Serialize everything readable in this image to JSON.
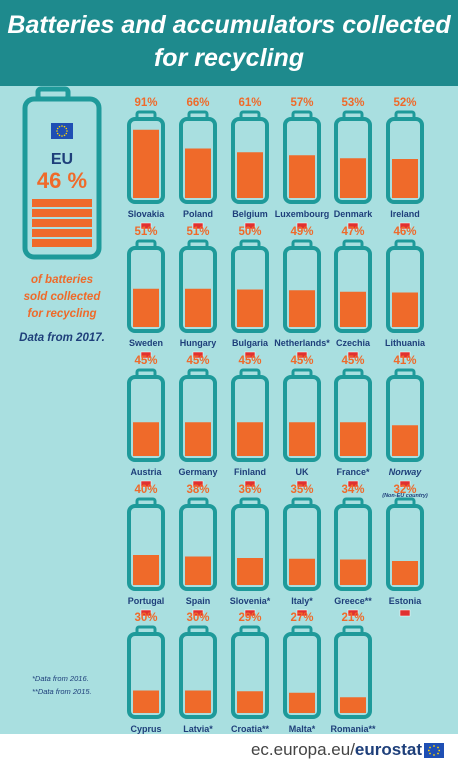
{
  "header": {
    "title_line1": "Batteries and accumulators collected",
    "title_line2": "for recycling"
  },
  "eu_summary": {
    "label": "EU",
    "value_text": "46 %",
    "value": 46,
    "caption_lines": [
      "of batteries",
      "sold collected",
      "for recycling"
    ],
    "note": "Data from 2017."
  },
  "footnotes": [
    "*Data from 2016.",
    "**Data from 2015."
  ],
  "footer": {
    "source_prefix": "ec.europa.eu/",
    "source_bold": "eurostat"
  },
  "colors": {
    "header": "#1e8a8d",
    "background": "#a9dfe0",
    "battery_outline": "#1e9a9a",
    "fill": "#ef6a2a",
    "value_text": "#ef6a2a",
    "label_text": "#1e3f7a",
    "eu_flag": "#1f4fb4"
  },
  "chart_data": {
    "type": "bar",
    "title": "Batteries and accumulators collected for recycling",
    "unit": "%",
    "categories": [
      "Slovakia",
      "Poland",
      "Belgium",
      "Luxembourg",
      "Denmark",
      "Ireland",
      "Sweden",
      "Hungary",
      "Bulgaria",
      "Netherlands*",
      "Czechia",
      "Lithuania",
      "Austria",
      "Germany",
      "Finland",
      "UK",
      "France*",
      "Norway",
      "Portugal",
      "Spain",
      "Slovenia*",
      "Italy*",
      "Greece**",
      "Estonia",
      "Cyprus",
      "Latvia*",
      "Croatia**",
      "Malta*",
      "Romania**"
    ],
    "values": [
      91,
      66,
      61,
      57,
      53,
      52,
      51,
      51,
      50,
      49,
      47,
      46,
      45,
      45,
      45,
      45,
      45,
      41,
      40,
      38,
      36,
      35,
      34,
      32,
      30,
      30,
      29,
      27,
      21
    ],
    "value_labels": [
      "91%",
      "66%",
      "61%",
      "57%",
      "53%",
      "52%",
      "51%",
      "51%",
      "50%",
      "49%",
      "47%",
      "46%",
      "45%",
      "45%",
      "45%",
      "45%",
      "45%",
      "41%",
      "40%",
      "38%",
      "36%",
      "35%",
      "34%",
      "32%",
      "30%",
      "30%",
      "29%",
      "27%",
      "21%"
    ],
    "notes": {
      "Norway": "(Non-EU country)"
    },
    "ylim": [
      0,
      100
    ]
  }
}
